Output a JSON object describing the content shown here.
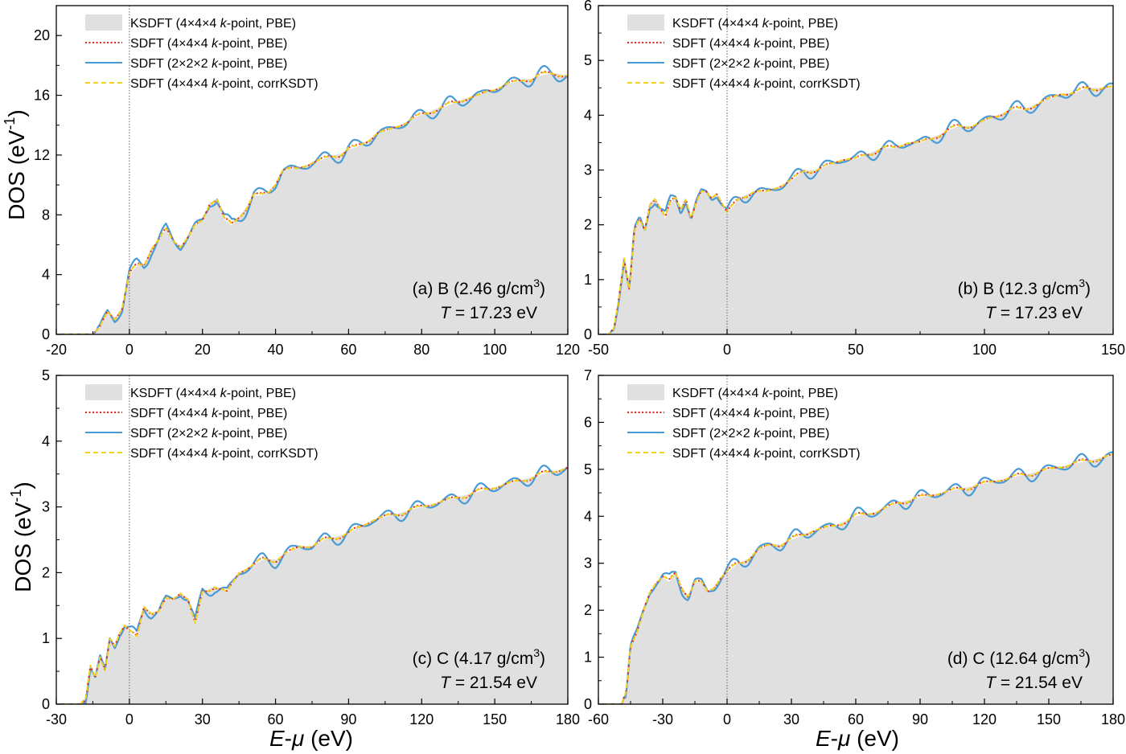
{
  "figure": {
    "ylabel_main": "DOS (eV",
    "ylabel_sup": "-1",
    "ylabel_close": ")",
    "xlabel_E": "E",
    "xlabel_dash": "-",
    "xlabel_mu": "μ",
    "xlabel_unit": " (eV)"
  },
  "legend": [
    {
      "id": "ksdft",
      "pre": "KSDFT (4×4×4 ",
      "italic": "k",
      "post": "-point, PBE)",
      "color": "#e0e0e0",
      "style": "fill"
    },
    {
      "id": "sdft444",
      "pre": "SDFT (4×4×4 ",
      "italic": "k",
      "post": "-point, PBE)",
      "color": "#e8201e",
      "style": "dotted"
    },
    {
      "id": "sdft222",
      "pre": "SDFT (2×2×2 ",
      "italic": "k",
      "post": "-point, PBE)",
      "color": "#4a9ad4",
      "style": "solid"
    },
    {
      "id": "corr",
      "pre": "SDFT (4×4×4 ",
      "italic": "k",
      "post": "-point, corrKSDT)",
      "color": "#f2d21c",
      "style": "dashed"
    }
  ],
  "chart_data": [
    {
      "type": "area",
      "panel": "a",
      "xlim": [
        -20,
        120
      ],
      "ylim": [
        0,
        22
      ],
      "xticks": [
        -20,
        0,
        20,
        40,
        60,
        80,
        100,
        120
      ],
      "yticks": [
        0,
        4,
        8,
        12,
        16,
        20
      ],
      "ann_line1": "(a) B (2.46 g/cm",
      "ann_sup": "3",
      "ann_close": ")",
      "ann_T": "T",
      "ann_T_val": " = 17.23 eV",
      "series": [
        {
          "name": "KSDFT (4×4×4 k-point, PBE)",
          "x": [
            -20,
            -10,
            -8,
            -6,
            -4,
            -2,
            0,
            2,
            4,
            6,
            8,
            10,
            12,
            14,
            16,
            18,
            20,
            22,
            24,
            26,
            28,
            30,
            32,
            34,
            36,
            38,
            40,
            42,
            44,
            46,
            48,
            50,
            52,
            54,
            56,
            58,
            60,
            62,
            64,
            66,
            68,
            70,
            72,
            74,
            76,
            78,
            80,
            82,
            84,
            86,
            88,
            90,
            92,
            94,
            96,
            98,
            100,
            102,
            104,
            106,
            108,
            110,
            112,
            114,
            116,
            118,
            120
          ],
          "y": [
            0,
            0,
            0.5,
            1.5,
            1.1,
            1.8,
            4.0,
            4.6,
            4.7,
            5.8,
            6.3,
            7.0,
            6.3,
            5.9,
            6.5,
            7.3,
            7.6,
            8.8,
            9.1,
            7.7,
            7.3,
            7.9,
            8.5,
            9.3,
            9.3,
            9.5,
            10.1,
            11.0,
            11.1,
            11.1,
            11.3,
            11.5,
            11.6,
            11.8,
            12.0,
            12.1,
            12.4,
            12.5,
            12.8,
            13.1,
            13.5,
            13.6,
            13.8,
            14.0,
            14.2,
            14.5,
            14.7,
            14.9,
            15.1,
            15.2,
            15.4,
            15.6,
            15.8,
            15.9,
            16.0,
            16.3,
            16.4,
            16.6,
            16.8,
            16.9,
            17.1,
            17.1,
            17.3,
            17.4,
            17.5,
            17.4,
            17.3
          ]
        }
      ]
    },
    {
      "type": "area",
      "panel": "b",
      "xlim": [
        -50,
        150
      ],
      "ylim": [
        0,
        6
      ],
      "xticks": [
        -50,
        0,
        50,
        100,
        150
      ],
      "yticks": [
        0,
        1,
        2,
        3,
        4,
        5,
        6
      ],
      "ann_line1": "(b) B (12.3 g/cm",
      "ann_sup": "3",
      "ann_close": ")",
      "ann_T": "T",
      "ann_T_val": " = 17.23 eV",
      "series": [
        {
          "name": "KSDFT (4×4×4 k-point, PBE)",
          "x": [
            -50,
            -46,
            -44,
            -42,
            -40,
            -38,
            -36,
            -34,
            -32,
            -30,
            -28,
            -26,
            -24,
            -22,
            -20,
            -18,
            -16,
            -14,
            -12,
            -10,
            -8,
            -6,
            -4,
            -2,
            0,
            5,
            10,
            15,
            20,
            25,
            30,
            35,
            40,
            45,
            50,
            55,
            60,
            65,
            70,
            75,
            80,
            85,
            90,
            95,
            100,
            105,
            110,
            115,
            120,
            125,
            130,
            135,
            140,
            145,
            150
          ],
          "y": [
            0,
            0,
            0.1,
            0.7,
            1.4,
            0.8,
            1.9,
            2.1,
            1.9,
            2.4,
            2.5,
            2.3,
            2.1,
            2.4,
            2.5,
            2.3,
            2.5,
            2.1,
            2.4,
            2.6,
            2.6,
            2.5,
            2.6,
            2.4,
            2.2,
            2.5,
            2.6,
            2.6,
            2.7,
            2.8,
            3.0,
            3.0,
            3.1,
            3.2,
            3.2,
            3.3,
            3.4,
            3.4,
            3.5,
            3.5,
            3.6,
            3.7,
            3.8,
            3.8,
            3.9,
            4.0,
            4.1,
            4.1,
            4.2,
            4.3,
            4.4,
            4.4,
            4.5,
            4.5,
            4.5
          ]
        }
      ]
    },
    {
      "type": "area",
      "panel": "c",
      "xlim": [
        -30,
        180
      ],
      "ylim": [
        0,
        5
      ],
      "xticks": [
        -30,
        0,
        30,
        60,
        90,
        120,
        150,
        180
      ],
      "yticks": [
        0,
        1,
        2,
        3,
        4,
        5
      ],
      "ann_line1": "(c) C (4.17 g/cm",
      "ann_sup": "3",
      "ann_close": ")",
      "ann_T": "T",
      "ann_T_val": " = 21.54 eV",
      "series": [
        {
          "name": "KSDFT (4×4×4 k-point, PBE)",
          "x": [
            -30,
            -20,
            -18,
            -16,
            -14,
            -12,
            -10,
            -8,
            -6,
            -4,
            -2,
            0,
            3,
            6,
            9,
            12,
            15,
            18,
            21,
            24,
            27,
            30,
            35,
            40,
            45,
            50,
            55,
            60,
            65,
            70,
            75,
            80,
            90,
            100,
            110,
            120,
            130,
            140,
            150,
            160,
            170,
            180
          ],
          "y": [
            0,
            0,
            0.1,
            0.6,
            0.4,
            0.7,
            0.5,
            1.0,
            0.9,
            1.1,
            1.2,
            1.1,
            1.0,
            1.5,
            1.4,
            1.4,
            1.6,
            1.6,
            1.7,
            1.6,
            1.2,
            1.7,
            1.8,
            1.7,
            2.0,
            2.1,
            2.2,
            2.2,
            2.3,
            2.4,
            2.4,
            2.5,
            2.6,
            2.8,
            2.9,
            3.0,
            3.1,
            3.2,
            3.3,
            3.4,
            3.5,
            3.6
          ]
        }
      ]
    },
    {
      "type": "area",
      "panel": "d",
      "xlim": [
        -60,
        180
      ],
      "ylim": [
        0,
        7
      ],
      "xticks": [
        -60,
        -30,
        0,
        30,
        60,
        90,
        120,
        150,
        180
      ],
      "yticks": [
        0,
        1,
        2,
        3,
        4,
        5,
        6,
        7
      ],
      "ann_line1": "(d) C (12.64 g/cm",
      "ann_sup": "3",
      "ann_close": ")",
      "ann_T": "T",
      "ann_T_val": " = 21.54 eV",
      "series": [
        {
          "name": "KSDFT (4×4×4 k-point, PBE)",
          "x": [
            -60,
            -49,
            -47,
            -45,
            -42,
            -39,
            -36,
            -33,
            -30,
            -27,
            -24,
            -21,
            -18,
            -15,
            -12,
            -9,
            -6,
            -3,
            0,
            5,
            10,
            15,
            20,
            25,
            30,
            40,
            50,
            60,
            70,
            80,
            90,
            100,
            110,
            120,
            130,
            140,
            150,
            160,
            170,
            180
          ],
          "y": [
            0,
            0,
            0.3,
            1.2,
            1.5,
            2.0,
            2.4,
            2.6,
            2.7,
            2.6,
            2.8,
            2.5,
            2.3,
            2.6,
            2.6,
            2.4,
            2.5,
            2.7,
            2.8,
            3.0,
            3.1,
            3.3,
            3.4,
            3.4,
            3.5,
            3.7,
            3.8,
            4.0,
            4.1,
            4.3,
            4.4,
            4.5,
            4.6,
            4.7,
            4.8,
            4.9,
            5.0,
            5.1,
            5.2,
            5.3
          ]
        }
      ]
    }
  ]
}
